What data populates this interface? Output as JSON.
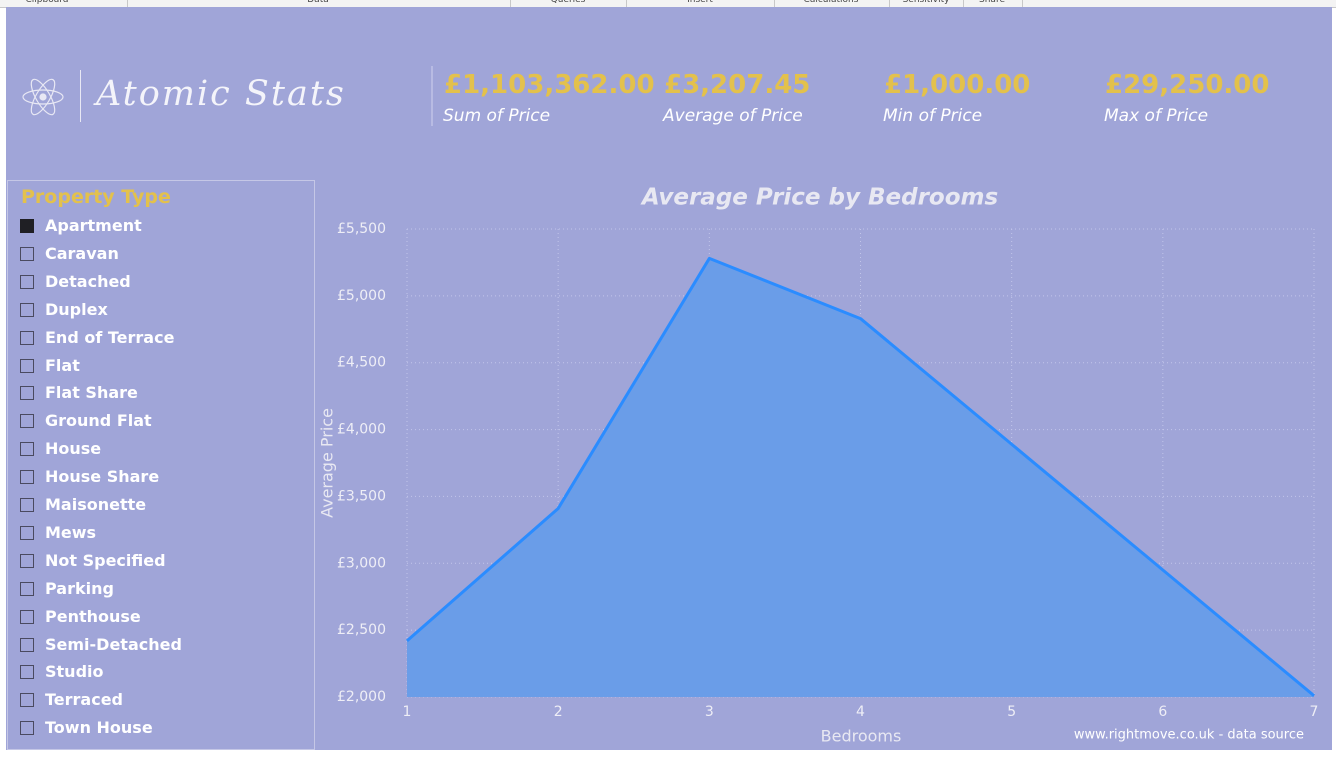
{
  "ribbon": {
    "groups": [
      "Clipboard",
      "Data",
      "Queries",
      "Insert",
      "Calculations",
      "Sensitivity",
      "Share"
    ]
  },
  "logo": {
    "text": "Atomic Stats"
  },
  "cards": [
    {
      "value": "£1,103,362.00",
      "label": "Sum of Price"
    },
    {
      "value": "£3,207.45",
      "label": "Average of Price"
    },
    {
      "value": "£1,000.00",
      "label": "Min of Price"
    },
    {
      "value": "£29,250.00",
      "label": "Max of Price"
    }
  ],
  "slicer": {
    "title": "Property Type",
    "items": [
      {
        "label": "Apartment",
        "checked": true
      },
      {
        "label": "Caravan",
        "checked": false
      },
      {
        "label": "Detached",
        "checked": false
      },
      {
        "label": "Duplex",
        "checked": false
      },
      {
        "label": "End of Terrace",
        "checked": false
      },
      {
        "label": "Flat",
        "checked": false
      },
      {
        "label": "Flat Share",
        "checked": false
      },
      {
        "label": "Ground Flat",
        "checked": false
      },
      {
        "label": "House",
        "checked": false
      },
      {
        "label": "House Share",
        "checked": false
      },
      {
        "label": "Maisonette",
        "checked": false
      },
      {
        "label": "Mews",
        "checked": false
      },
      {
        "label": "Not Specified",
        "checked": false
      },
      {
        "label": "Parking",
        "checked": false
      },
      {
        "label": "Penthouse",
        "checked": false
      },
      {
        "label": "Semi-Detached",
        "checked": false
      },
      {
        "label": "Studio",
        "checked": false
      },
      {
        "label": "Terraced",
        "checked": false
      },
      {
        "label": "Town House",
        "checked": false
      }
    ]
  },
  "chart_data": {
    "type": "area",
    "title": "Average Price by Bedrooms",
    "x_label": "Bedrooms",
    "y_label": "Average Price",
    "annotation": "www.rightmove.co.uk - data source",
    "x": [
      1,
      2,
      3,
      4,
      5,
      6,
      7
    ],
    "values": [
      2420,
      3410,
      5280,
      4830,
      3890,
      2950,
      2010
    ],
    "color": "#2b8cff",
    "fill": "#6a9de8",
    "xlim": [
      1,
      7
    ],
    "ylim": [
      2000,
      5500
    ],
    "xticks": [
      1,
      2,
      3,
      4,
      5,
      6,
      7
    ],
    "yticks": [
      {
        "value": 2000,
        "label": "£2,000"
      },
      {
        "value": 2500,
        "label": "£2,500"
      },
      {
        "value": 3000,
        "label": "£3,000"
      },
      {
        "value": 3500,
        "label": "£3,500"
      },
      {
        "value": 4000,
        "label": "£4,000"
      },
      {
        "value": 4500,
        "label": "£4,500"
      },
      {
        "value": 5000,
        "label": "£5,000"
      },
      {
        "value": 5500,
        "label": "£5,500"
      }
    ],
    "grid": true
  }
}
